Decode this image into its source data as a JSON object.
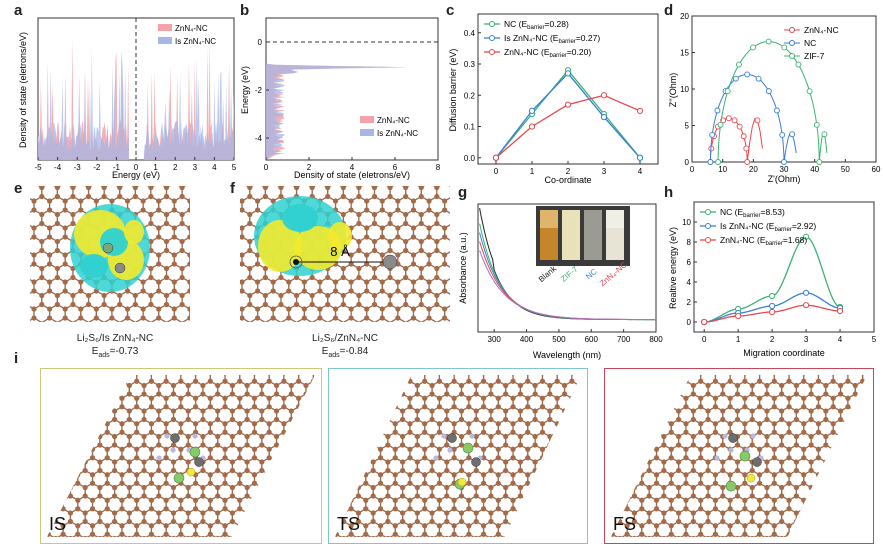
{
  "labels": {
    "a": "a",
    "b": "b",
    "c": "c",
    "d": "d",
    "e": "e",
    "f": "f",
    "g": "g",
    "h": "h",
    "i": "i"
  },
  "panel_a": {
    "ylabel": "Density of state (eletrons/eV)",
    "xlabel": "Energy (eV)",
    "legend": [
      "ZnN₄-NC",
      "Is ZnN₄-NC"
    ],
    "xticks": [
      "-5",
      "-4",
      "-3",
      "-2",
      "-1",
      "0",
      "1",
      "2",
      "3",
      "4",
      "5"
    ],
    "colors": {
      "zn": "#f2a2a8",
      "is": "#a7b6e6"
    }
  },
  "panel_b": {
    "ylabel": "Energy (eV)",
    "xlabel": "Density of state (eletrons/eV)",
    "legend": [
      "ZnN₄-NC",
      "Is ZnN₄-NC"
    ],
    "xticks": [
      "0",
      "2",
      "4",
      "6",
      "8"
    ],
    "yticks": [
      "0",
      "-2",
      "-4"
    ]
  },
  "chart_data": [
    {
      "type": "line",
      "panel": "c",
      "xlabel": "Co-ordinate",
      "ylabel": "Diffusion barrier (eV)",
      "xlim": [
        -0.5,
        4.5
      ],
      "ylim": [
        -0.02,
        0.46
      ],
      "xticks": [
        "0",
        "1",
        "2",
        "3",
        "4"
      ],
      "yticks": [
        "0.0",
        "0.1",
        "0.2",
        "0.3",
        "0.4"
      ],
      "legend_placement": "top-left",
      "x": [
        0,
        1,
        2,
        3,
        4
      ],
      "series": [
        {
          "name": "NC (E_barrier=0.28)",
          "label_main": "NC (E",
          "label_sub": "barrier",
          "label_tail": "=0.28)",
          "color": "#3cb371",
          "values": [
            0,
            0.14,
            0.28,
            0.14,
            0
          ]
        },
        {
          "name": "Is ZnN₄-NC (E_barrier=0.27)",
          "label_main": "Is ZnN₄-NC (E",
          "label_sub": "barrier",
          "label_tail": "=0.27)",
          "color": "#3a7fd5",
          "values": [
            0,
            0.15,
            0.27,
            0.13,
            0
          ]
        },
        {
          "name": "ZnN₄-NC (E_barrier=0.20)",
          "label_main": "ZnN₄-NC (E",
          "label_sub": "barrier",
          "label_tail": "=0.20)",
          "color": "#e8474d",
          "values": [
            0,
            0.1,
            0.17,
            0.2,
            0.15
          ]
        }
      ]
    },
    {
      "type": "scatter",
      "panel": "d",
      "xlabel": "Z'(Ohm)",
      "ylabel": "Z''(Ohm)",
      "xlim": [
        0,
        60
      ],
      "ylim": [
        0,
        20
      ],
      "xticks": [
        "0",
        "10",
        "20",
        "30",
        "40",
        "50",
        "60"
      ],
      "yticks": [
        "0",
        "5",
        "10",
        "15",
        "20"
      ],
      "legend_placement": "top-right",
      "series": [
        {
          "name": "ZnN₄-NC",
          "color": "#e8474d",
          "center": 12,
          "radius": 6,
          "tail_end": 23,
          "tail_peak": 6
        },
        {
          "name": "NC",
          "color": "#3a7fd5",
          "center": 18,
          "radius": 12,
          "tail_end": 34,
          "tail_peak": 4
        },
        {
          "name": "ZIF-7",
          "color": "#3cb371",
          "center": 25,
          "radius": 16.5,
          "tail_end": 44,
          "tail_peak": 4
        }
      ]
    },
    {
      "type": "line",
      "panel": "g",
      "xlabel": "Wavelength (nm)",
      "ylabel": "Absorbance (a.u.)",
      "xlim": [
        250,
        800
      ],
      "xticks": [
        "300",
        "400",
        "500",
        "600",
        "700",
        "800"
      ],
      "photo_labels": [
        "Blank",
        "ZIF-7",
        "NC",
        "ZnN₄-NC"
      ],
      "photo_label_colors": [
        "#222222",
        "#3cb371",
        "#3a7fd5",
        "#e8474d"
      ],
      "series_colors": [
        "#222222",
        "#3cb371",
        "#3a7fd5",
        "#e8474d",
        "#b06fc2"
      ]
    },
    {
      "type": "line",
      "panel": "h",
      "xlabel": "Migration coordinate",
      "ylabel": "Realtive energy (eV)",
      "xlim": [
        -0.3,
        5
      ],
      "ylim": [
        -1,
        12
      ],
      "xticks": [
        "0",
        "1",
        "2",
        "3",
        "4",
        "5"
      ],
      "yticks": [
        "0",
        "2",
        "4",
        "6",
        "8",
        "10"
      ],
      "legend_placement": "top-left",
      "x": [
        0,
        1,
        2,
        3,
        4
      ],
      "series": [
        {
          "name": "NC (E_barrier=8.53)",
          "label_main": "NC (E",
          "label_sub": "barrier",
          "label_tail": "=8.53)",
          "color": "#3cb371",
          "values": [
            0,
            1.3,
            2.6,
            8.53,
            1.5
          ]
        },
        {
          "name": "Is ZnN₄-NC (E_barrier=2.92)",
          "label_main": "Is ZnN₄-NC (E",
          "label_sub": "barrier",
          "label_tail": "=2.92)",
          "color": "#3a7fd5",
          "values": [
            0,
            0.9,
            1.6,
            2.92,
            1.4
          ]
        },
        {
          "name": "ZnN₄-NC (E_barrier=1.68)",
          "label_main": "ZnN₄-NC (E",
          "label_sub": "barrier",
          "label_tail": "=1.68)",
          "color": "#e8474d",
          "values": [
            0,
            0.6,
            1.0,
            1.68,
            1.1
          ]
        }
      ]
    }
  ],
  "panel_e": {
    "caption_line1": "Li₂S₆/Is ZnN₄-NC",
    "caption_main": "E",
    "caption_sub": "ads",
    "caption_tail": "=-0.73"
  },
  "panel_f": {
    "caption_line1": "Li₂S₆/ZnN₄-NC",
    "caption_main": "E",
    "caption_sub": "ads",
    "caption_tail": "=-0.84",
    "distance_label": "8 Å"
  },
  "panel_i": {
    "frames": [
      {
        "label": "IS",
        "border": "#c9c97a"
      },
      {
        "label": "TS",
        "border": "#7fc4d8"
      },
      {
        "label": "FS",
        "border": "#c8465a"
      }
    ]
  }
}
